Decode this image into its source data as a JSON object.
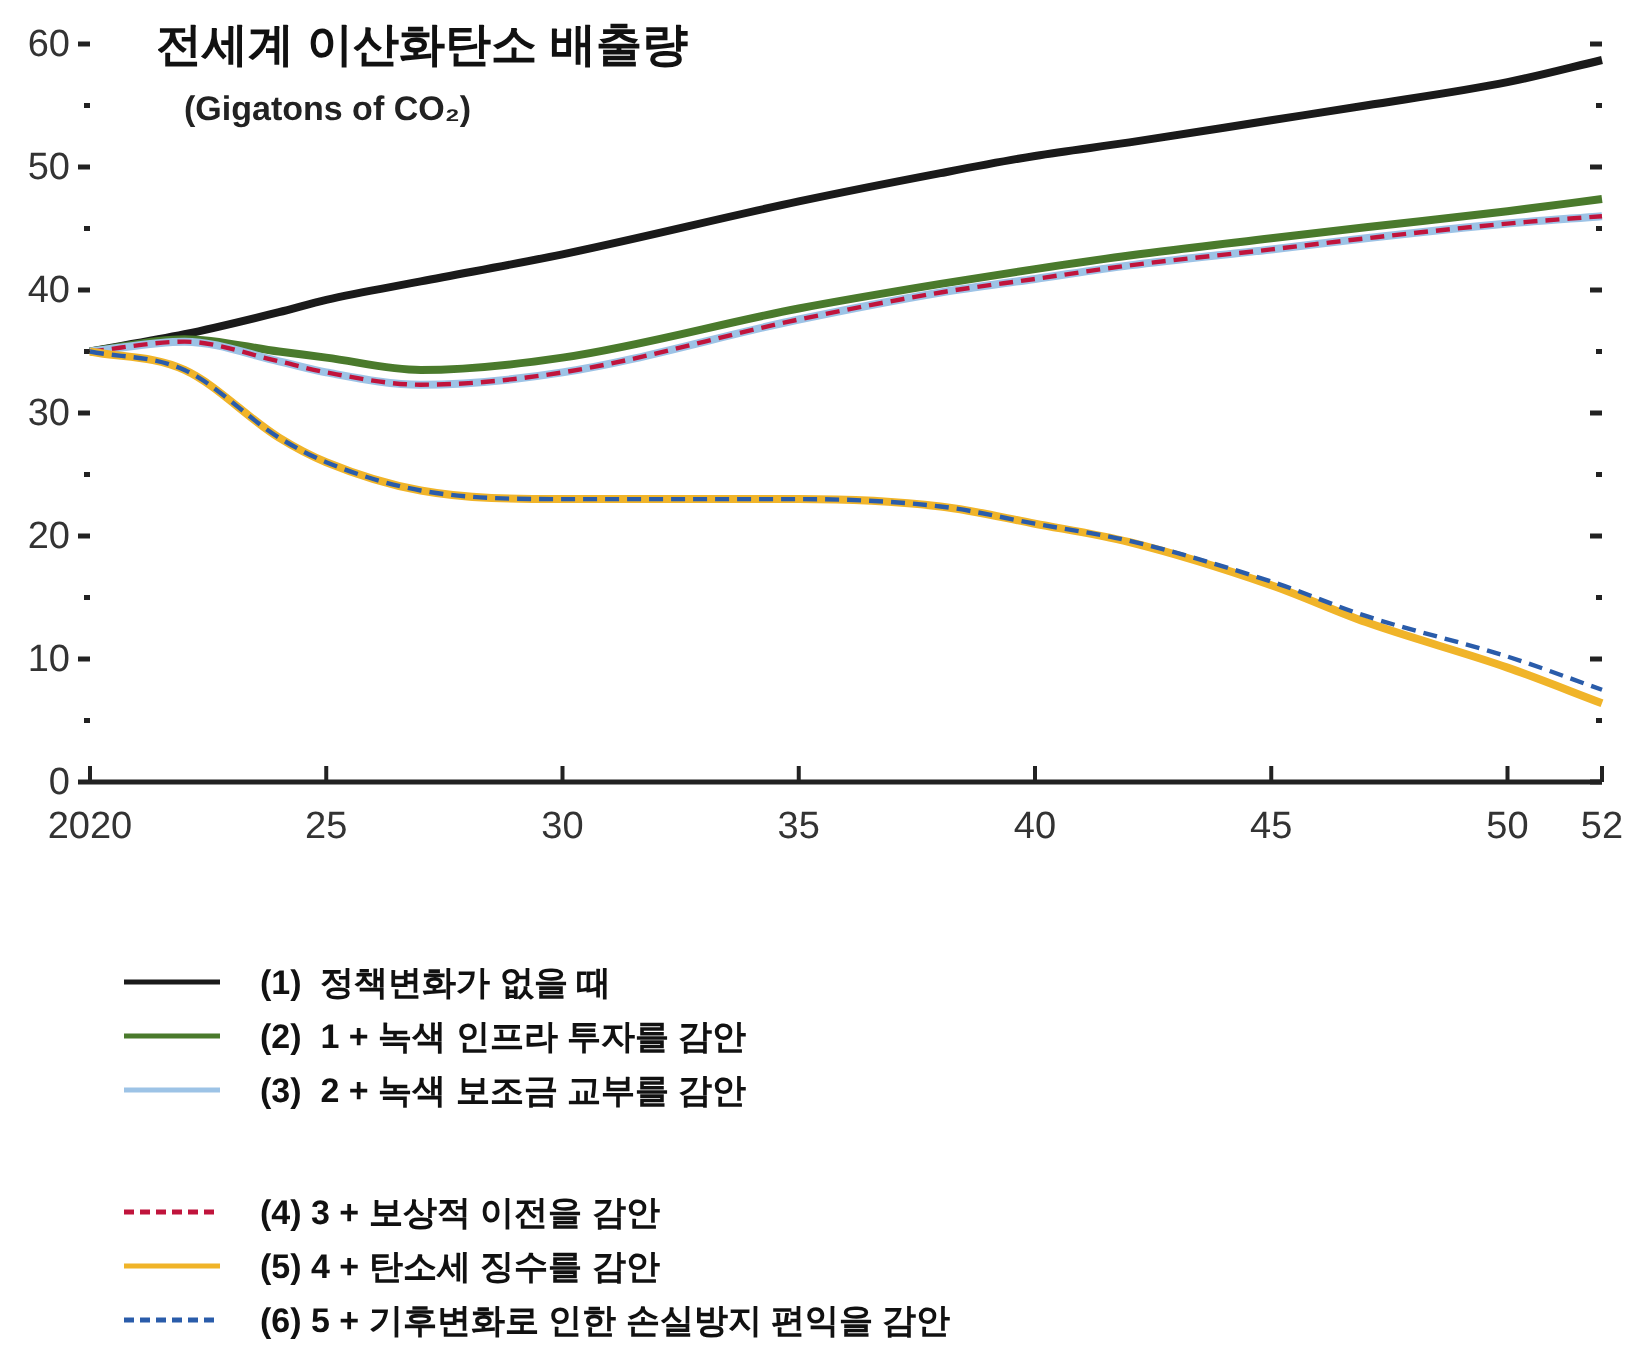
{
  "chart_data": {
    "type": "line",
    "title": "전세계 이산화탄소 배출량",
    "subtitle": "(Gigatons of CO₂)",
    "x": [
      2020,
      2022,
      2024,
      2025,
      2027,
      2030,
      2035,
      2038,
      2040,
      2042,
      2045,
      2047,
      2050,
      2052
    ],
    "series": [
      {
        "name": "(1)  정책변화가 없을 때",
        "color": "#1a1a1a",
        "line_style": "solid",
        "values": [
          35,
          36.4,
          38.2,
          39.2,
          40.7,
          42.9,
          47.2,
          49.5,
          50.9,
          52.0,
          53.8,
          55.0,
          56.9,
          58.7
        ]
      },
      {
        "name": "(2)  1 + 녹색 인프라 투자를 감안",
        "color": "#4a7a2c",
        "line_style": "solid",
        "values": [
          35,
          36.0,
          35.0,
          34.5,
          33.5,
          34.5,
          38.5,
          40.5,
          41.7,
          42.8,
          44.2,
          45.1,
          46.4,
          47.4
        ]
      },
      {
        "name": "(3)  2 + 녹색 보조금 교부를 감안",
        "color": "#9dc3e6",
        "line_style": "solid",
        "values": [
          35,
          35.8,
          34.2,
          33.3,
          32.3,
          33.3,
          37.6,
          39.8,
          40.9,
          42.0,
          43.3,
          44.2,
          45.4,
          46.0
        ]
      },
      {
        "name": "(4) 3 + 보상적 이전을 감안",
        "color": "#c0143c",
        "line_style": "dashed",
        "values": [
          35,
          35.8,
          34.2,
          33.3,
          32.3,
          33.3,
          37.6,
          39.8,
          40.9,
          42.0,
          43.3,
          44.2,
          45.4,
          46.0
        ]
      },
      {
        "name": "(5) 4 + 탄소세 징수를 감안",
        "color": "#f0b429",
        "line_style": "solid",
        "values": [
          35,
          33.5,
          28.0,
          26.0,
          23.7,
          23.0,
          23.0,
          22.4,
          21.0,
          19.5,
          16.0,
          13.0,
          9.3,
          6.4
        ]
      },
      {
        "name": "(6) 5 + 기후변화로 인한 손실방지 편익을 감안",
        "color": "#2a5caa",
        "line_style": "dashed",
        "values": [
          35,
          33.5,
          28.0,
          26.0,
          23.7,
          23.0,
          23.0,
          22.4,
          21.0,
          19.6,
          16.3,
          13.5,
          10.2,
          7.5
        ]
      }
    ],
    "xlim": [
      2020,
      2052
    ],
    "xticks": [
      {
        "value": 2020,
        "label": "2020"
      },
      {
        "value": 2025,
        "label": "25"
      },
      {
        "value": 2030,
        "label": "30"
      },
      {
        "value": 2035,
        "label": "35"
      },
      {
        "value": 2040,
        "label": "40"
      },
      {
        "value": 2045,
        "label": "45"
      },
      {
        "value": 2050,
        "label": "50"
      },
      {
        "value": 2052,
        "label": "52"
      }
    ],
    "ylim": [
      0,
      60
    ],
    "yticks": [
      0,
      {
        "value": 5,
        "label": null
      },
      10,
      {
        "value": 15,
        "label": null
      },
      20,
      {
        "value": 25,
        "label": null
      },
      30,
      {
        "value": 35,
        "label": null
      },
      40,
      {
        "value": 45,
        "label": null
      },
      50,
      {
        "value": 55,
        "label": null
      },
      60
    ],
    "grid": false,
    "legend": "bottom",
    "marker": "none"
  }
}
